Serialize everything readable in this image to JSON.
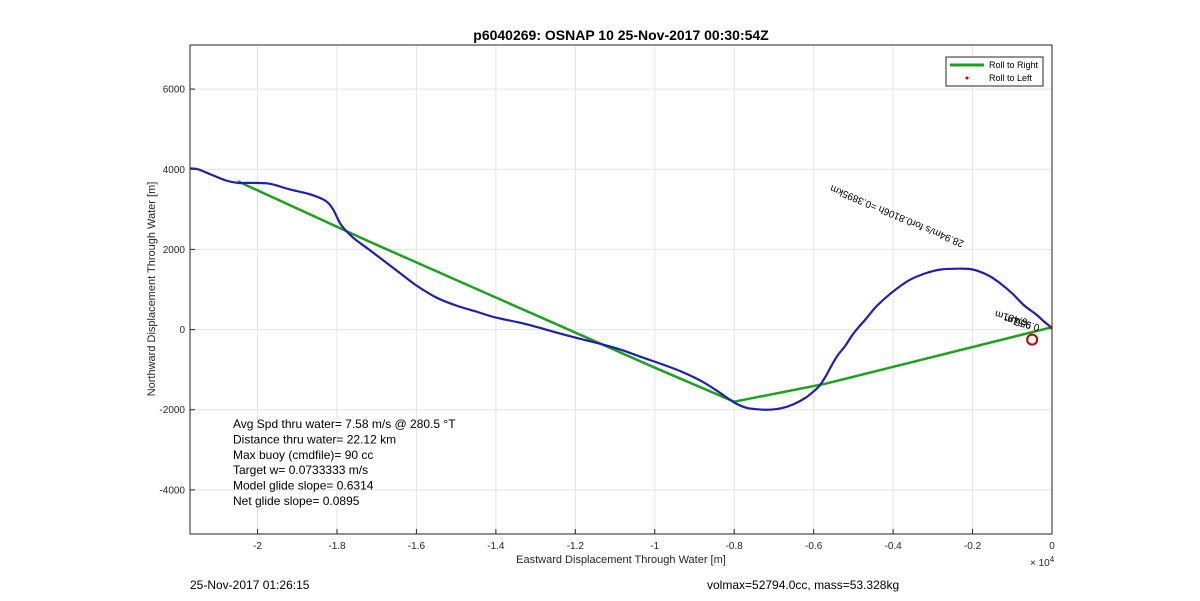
{
  "chart_data": {
    "type": "line",
    "title": "p6040269: OSNAP 10 25-Nov-2017 00:30:54Z",
    "xlabel": "Eastward Displacement Through Water [m]",
    "ylabel": "Northward Displacement Through Water [m]",
    "x_exponent_label": "× 10",
    "x_exponent_power": "4",
    "xlim": [
      -2.17,
      0
    ],
    "ylim": [
      -5100,
      7100
    ],
    "x_ticks": [
      -2,
      -1.8,
      -1.6,
      -1.4,
      -1.2,
      -1,
      -0.8,
      -0.6,
      -0.4,
      -0.2,
      0
    ],
    "x_tick_labels": [
      "-2",
      "-1.8",
      "-1.6",
      "-1.4",
      "-1.2",
      "-1",
      "-0.8",
      "-0.6",
      "-0.4",
      "-0.2",
      "0"
    ],
    "y_ticks": [
      -4000,
      -2000,
      0,
      2000,
      4000,
      6000
    ],
    "y_tick_labels": [
      "-4000",
      "-2000",
      "0",
      "2000",
      "4000",
      "6000"
    ],
    "grid": true,
    "legend_position": "top-right",
    "legend": [
      {
        "label": "Roll to Right",
        "color": "#1aa31a",
        "marker": "line"
      },
      {
        "label": "Roll to Left",
        "color": "#cc0000",
        "marker": "dot"
      }
    ],
    "series": [
      {
        "kind": "track",
        "color": "#1f1fb4",
        "x": [
          -2.17,
          -2.15,
          -2.12,
          -2.08,
          -2.05,
          -2.02,
          -1.97,
          -1.92,
          -1.87,
          -1.83,
          -1.81,
          -1.79,
          -1.76,
          -1.72,
          -1.68,
          -1.64,
          -1.6,
          -1.55,
          -1.5,
          -1.45,
          -1.4,
          -1.33,
          -1.26,
          -1.2,
          -1.14,
          -1.08,
          -1.03,
          -0.98,
          -0.93,
          -0.88,
          -0.84,
          -0.8,
          -0.77,
          -0.74,
          -0.71,
          -0.68,
          -0.65,
          -0.62,
          -0.6,
          -0.585,
          -0.57,
          -0.555,
          -0.54,
          -0.52,
          -0.5,
          -0.47,
          -0.44,
          -0.4,
          -0.36,
          -0.32,
          -0.28,
          -0.24,
          -0.2,
          -0.16,
          -0.13,
          -0.1,
          -0.07,
          -0.04,
          -0.02,
          -0.005,
          0
        ],
        "y": [
          4020,
          4000,
          3880,
          3720,
          3660,
          3660,
          3640,
          3500,
          3380,
          3220,
          3000,
          2620,
          2300,
          2000,
          1700,
          1400,
          1100,
          800,
          600,
          450,
          300,
          150,
          -40,
          -200,
          -350,
          -520,
          -700,
          -870,
          -1060,
          -1300,
          -1550,
          -1820,
          -1950,
          -1990,
          -2000,
          -1960,
          -1860,
          -1700,
          -1540,
          -1400,
          -1170,
          -900,
          -650,
          -400,
          -100,
          250,
          600,
          950,
          1230,
          1400,
          1500,
          1520,
          1500,
          1350,
          1150,
          900,
          600,
          380,
          200,
          80,
          20
        ]
      },
      {
        "kind": "roll-to-right",
        "name": "Roll to Right",
        "color": "#1aa31a",
        "x": [
          -2.05,
          -1.72,
          -1.0,
          -0.8,
          -0.57,
          0
        ],
        "y": [
          3700,
          2200,
          -950,
          -1800,
          -1350,
          60
        ]
      }
    ],
    "roll_to_left_points": [
      {
        "x": -0.004,
        "y": 60
      }
    ],
    "circle_marker": {
      "x": -0.05,
      "y": -250,
      "color": "#c00000"
    },
    "annotations": [
      {
        "text": "28.94m/s for0.8106h =0.3895km",
        "x": -0.22,
        "y": 2200,
        "rotation_deg": 203,
        "color": "#000000",
        "font_size": 10
      },
      {
        "text": "6.481m",
        "x": -0.06,
        "y": 260,
        "rotation_deg": 195,
        "color": "#000000",
        "font_size": 10
      },
      {
        "text": "9.51m",
        "x": -0.05,
        "y": 180,
        "rotation_deg": 195,
        "color": "#000000",
        "font_size": 10
      },
      {
        "text": "0.956",
        "x": -0.03,
        "y": 120,
        "rotation_deg": 195,
        "color": "#000000",
        "font_size": 10
      }
    ],
    "stats": [
      "Avg Spd thru water=  7.58 m/s @ 280.5 °T",
      "Distance thru water= 22.12 km",
      "Max buoy (cmdfile)= 90 cc",
      "Target w= 0.0733333 m/s",
      "Model glide slope= 0.6314",
      "Net glide slope= 0.0895"
    ]
  },
  "footer": {
    "left": "25-Nov-2017 01:26:15",
    "right": "volmax=52794.0cc, mass=53.328kg"
  }
}
